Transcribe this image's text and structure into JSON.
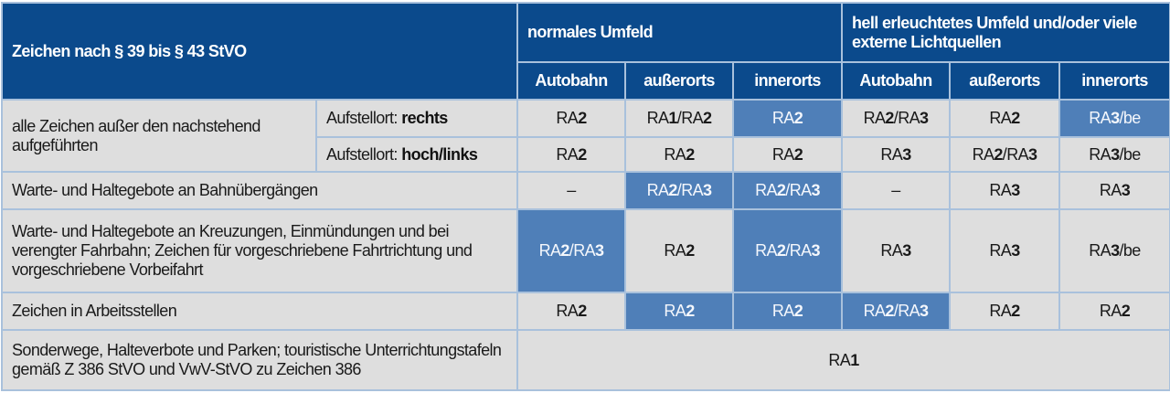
{
  "header": {
    "title": "Zeichen nach § 39 bis § 43 StVO",
    "group_normal": "normales Umfeld",
    "group_bright": "hell erleuchtetes Umfeld und/oder viele externe Lichtquellen",
    "columns": [
      "Autobahn",
      "außerorts",
      "innerorts",
      "Autobahn",
      "außerorts",
      "innerorts"
    ]
  },
  "colors": {
    "header": "#0b4a8c",
    "cell": "#dedede",
    "highlight": "#4f7fb8",
    "border": "#a9c1dc"
  },
  "rows": [
    {
      "label": "alle Zeichen außer den nachstehend aufgeführten",
      "sub_prefix": "Aufstellort: ",
      "sub": "rechts",
      "values": [
        "RA2",
        "RA1/RA2",
        "RA2",
        "RA2/RA3",
        "RA2",
        "RA3/be"
      ],
      "highlight": [
        false,
        false,
        true,
        false,
        false,
        true
      ]
    },
    {
      "label": "",
      "sub_prefix": "Aufstellort: ",
      "sub": "hoch/links",
      "values": [
        "RA2",
        "RA2",
        "RA2",
        "RA3",
        "RA2/RA3",
        "RA3/be"
      ],
      "highlight": [
        false,
        false,
        false,
        false,
        false,
        false
      ]
    },
    {
      "label": "Warte- und Haltegebote an Bahnübergängen",
      "values": [
        "–",
        "RA2/RA3",
        "RA2/RA3",
        "–",
        "RA3",
        "RA3"
      ],
      "highlight": [
        false,
        true,
        true,
        false,
        false,
        false
      ]
    },
    {
      "label": "Warte- und Haltegebote an Kreuzungen, Einmündungen und bei verengter Fahrbahn; Zeichen für vorgeschriebene Fahrtrichtung und vorgeschriebene Vorbeifahrt",
      "values": [
        "RA2/RA3",
        "RA2",
        "RA2/RA3",
        "RA3",
        "RA3",
        "RA3/be"
      ],
      "highlight": [
        true,
        false,
        true,
        false,
        false,
        false
      ]
    },
    {
      "label": "Zeichen in Arbeitsstellen",
      "values": [
        "RA2",
        "RA2",
        "RA2",
        "RA2/RA3",
        "RA2",
        "RA2"
      ],
      "highlight": [
        false,
        true,
        true,
        true,
        false,
        false
      ]
    },
    {
      "label": "Sonderwege, Halteverbote und Parken; touristische Unterrichtungstafeln gemäß Z 386 StVO und VwV-StVO zu Zeichen 386",
      "values": [
        "RA1"
      ],
      "span_all": true,
      "highlight": [
        false
      ]
    }
  ]
}
